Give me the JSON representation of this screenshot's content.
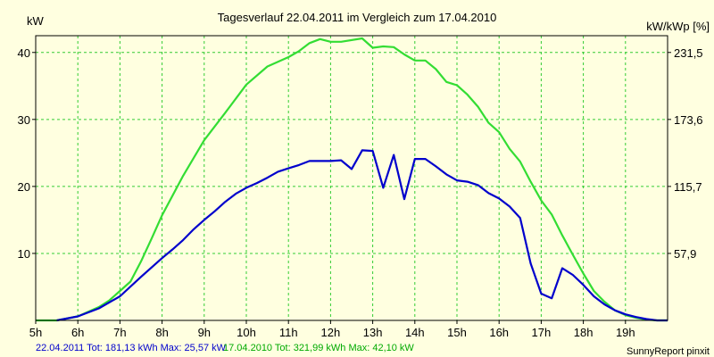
{
  "chart_data": {
    "type": "line",
    "title": "Tagesverlauf 22.04.2011 im Vergleich zum 17.04.2010",
    "ylabel_left": "kW",
    "ylabel_right": "kW/kWp [%]",
    "x_ticks": [
      "5h",
      "6h",
      "7h",
      "8h",
      "9h",
      "10h",
      "11h",
      "12h",
      "13h",
      "14h",
      "15h",
      "16h",
      "17h",
      "18h",
      "19h"
    ],
    "x_tick_values": [
      5,
      6,
      7,
      8,
      9,
      10,
      11,
      12,
      13,
      14,
      15,
      16,
      17,
      18,
      19
    ],
    "xlim": [
      5,
      20
    ],
    "y_ticks_left": [
      "10",
      "20",
      "30",
      "40"
    ],
    "y_tick_values_left": [
      10,
      20,
      30,
      40
    ],
    "y_ticks_right": [
      "57,9",
      "115,7",
      "173,6",
      "231,5"
    ],
    "y_tick_values_right": [
      10,
      20,
      30,
      40
    ],
    "ylim": [
      0,
      42.5
    ],
    "grid": true,
    "series": [
      {
        "name": "22.04.2011",
        "color": "#0000cc",
        "points": [
          [
            5.5,
            0
          ],
          [
            6,
            0.6
          ],
          [
            6.5,
            1.8
          ],
          [
            7,
            3.6
          ],
          [
            7.5,
            6.5
          ],
          [
            8,
            9.3
          ],
          [
            8.25,
            10.6
          ],
          [
            8.5,
            12
          ],
          [
            8.75,
            13.6
          ],
          [
            9,
            15
          ],
          [
            9.25,
            16.3
          ],
          [
            9.5,
            17.7
          ],
          [
            9.75,
            18.9
          ],
          [
            10,
            19.8
          ],
          [
            10.25,
            20.5
          ],
          [
            10.5,
            21.3
          ],
          [
            10.75,
            22.2
          ],
          [
            11,
            22.7
          ],
          [
            11.25,
            23.2
          ],
          [
            11.5,
            23.8
          ],
          [
            11.75,
            23.8
          ],
          [
            12,
            23.8
          ],
          [
            12.25,
            23.9
          ],
          [
            12.5,
            22.6
          ],
          [
            12.75,
            25.4
          ],
          [
            13,
            25.3
          ],
          [
            13.25,
            19.8
          ],
          [
            13.5,
            24.7
          ],
          [
            13.75,
            18.1
          ],
          [
            14,
            24.1
          ],
          [
            14.25,
            24.1
          ],
          [
            14.5,
            23
          ],
          [
            14.75,
            21.8
          ],
          [
            15,
            20.9
          ],
          [
            15.25,
            20.7
          ],
          [
            15.5,
            20.2
          ],
          [
            15.75,
            19
          ],
          [
            16,
            18.2
          ],
          [
            16.25,
            17
          ],
          [
            16.5,
            15.3
          ],
          [
            16.75,
            8.5
          ],
          [
            17,
            4
          ],
          [
            17.25,
            3.3
          ],
          [
            17.5,
            7.8
          ],
          [
            17.75,
            6.8
          ],
          [
            18,
            5.3
          ],
          [
            18.25,
            3.6
          ],
          [
            18.5,
            2.4
          ],
          [
            18.75,
            1.5
          ],
          [
            19,
            0.9
          ],
          [
            19.25,
            0.5
          ],
          [
            19.5,
            0.2
          ],
          [
            19.75,
            0
          ],
          [
            20,
            0
          ]
        ]
      },
      {
        "name": "17.04.2010",
        "color": "#33dd33",
        "points": [
          [
            5,
            0
          ],
          [
            5.5,
            0
          ],
          [
            6,
            0.6
          ],
          [
            6.5,
            2
          ],
          [
            6.75,
            3
          ],
          [
            7,
            4.4
          ],
          [
            7.25,
            5.8
          ],
          [
            7.5,
            8.8
          ],
          [
            7.75,
            12.2
          ],
          [
            8,
            15.7
          ],
          [
            8.5,
            21.6
          ],
          [
            9,
            26.9
          ],
          [
            9.5,
            31
          ],
          [
            10,
            35.2
          ],
          [
            10.5,
            37.9
          ],
          [
            11,
            39.3
          ],
          [
            11.25,
            40.2
          ],
          [
            11.5,
            41.4
          ],
          [
            11.75,
            42
          ],
          [
            12,
            41.6
          ],
          [
            12.25,
            41.6
          ],
          [
            12.75,
            42.1
          ],
          [
            13,
            40.7
          ],
          [
            13.25,
            40.9
          ],
          [
            13.5,
            40.8
          ],
          [
            13.75,
            39.7
          ],
          [
            14,
            38.8
          ],
          [
            14.25,
            38.8
          ],
          [
            14.5,
            37.5
          ],
          [
            14.75,
            35.6
          ],
          [
            15,
            35.1
          ],
          [
            15.25,
            33.7
          ],
          [
            15.5,
            31.9
          ],
          [
            15.75,
            29.5
          ],
          [
            16,
            28.1
          ],
          [
            16.25,
            25.6
          ],
          [
            16.5,
            23.7
          ],
          [
            16.75,
            20.7
          ],
          [
            17,
            17.9
          ],
          [
            17.25,
            15.8
          ],
          [
            17.5,
            12.7
          ],
          [
            17.75,
            9.8
          ],
          [
            18,
            7
          ],
          [
            18.25,
            4.4
          ],
          [
            18.5,
            2.8
          ],
          [
            18.75,
            1.5
          ],
          [
            19,
            0.8
          ],
          [
            19.25,
            0.4
          ],
          [
            19.5,
            0.1
          ],
          [
            19.75,
            0
          ],
          [
            20,
            0
          ]
        ]
      }
    ]
  },
  "footer": {
    "legend_2011": "22.04.2011 Tot: 181,13 kWh Max: 25,57 kW",
    "legend_2010": "17.04.2010 Tot: 321,99 kWh Max: 42,10 kW",
    "credit": "SunnyReport pinxit"
  },
  "colors": {
    "background": "#ffffe0",
    "plot_bg": "#ffffe0",
    "grid": "#33cc33",
    "series_2011": "#0000cc",
    "series_2010": "#33dd33",
    "footer_2011": "#0000cc",
    "footer_2010": "#00aa00"
  }
}
